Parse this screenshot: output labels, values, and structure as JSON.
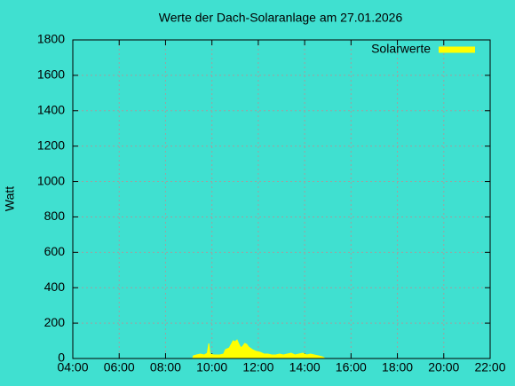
{
  "chart_data": {
    "type": "area",
    "title": "Werte der Dach-Solaranlage am 27.01.2026",
    "y_label": "Watt",
    "legend": "top-right",
    "grid": true,
    "xlim": [
      "04:00",
      "22:00"
    ],
    "xticks": [
      "04:00",
      "06:00",
      "08:00",
      "10:00",
      "12:00",
      "14:00",
      "16:00",
      "18:00",
      "20:00",
      "22:00"
    ],
    "ylim": [
      0,
      1800
    ],
    "yticks": [
      0,
      200,
      400,
      600,
      800,
      1000,
      1200,
      1400,
      1600,
      1800
    ],
    "x": [
      "09:10",
      "09:12",
      "09:20",
      "09:30",
      "09:40",
      "09:48",
      "09:52",
      "09:55",
      "10:05",
      "10:20",
      "10:30",
      "10:35",
      "10:45",
      "10:50",
      "10:55",
      "11:00",
      "11:05",
      "11:10",
      "11:15",
      "11:20",
      "11:25",
      "11:30",
      "11:35",
      "11:45",
      "11:55",
      "12:05",
      "12:15",
      "12:25",
      "12:35",
      "12:45",
      "12:55",
      "13:05",
      "13:15",
      "13:25",
      "13:35",
      "13:45",
      "13:55",
      "14:05",
      "14:15",
      "14:25",
      "14:35",
      "14:45",
      "14:50",
      "14:52"
    ],
    "series": [
      {
        "name": "Solarwerte",
        "color": "#ffff00",
        "values": [
          0,
          15,
          20,
          25,
          20,
          30,
          85,
          25,
          20,
          20,
          25,
          50,
          60,
          80,
          100,
          95,
          105,
          80,
          60,
          70,
          85,
          80,
          65,
          50,
          40,
          35,
          25,
          25,
          20,
          20,
          25,
          20,
          25,
          30,
          20,
          25,
          30,
          20,
          25,
          20,
          15,
          10,
          5,
          0
        ]
      }
    ]
  }
}
